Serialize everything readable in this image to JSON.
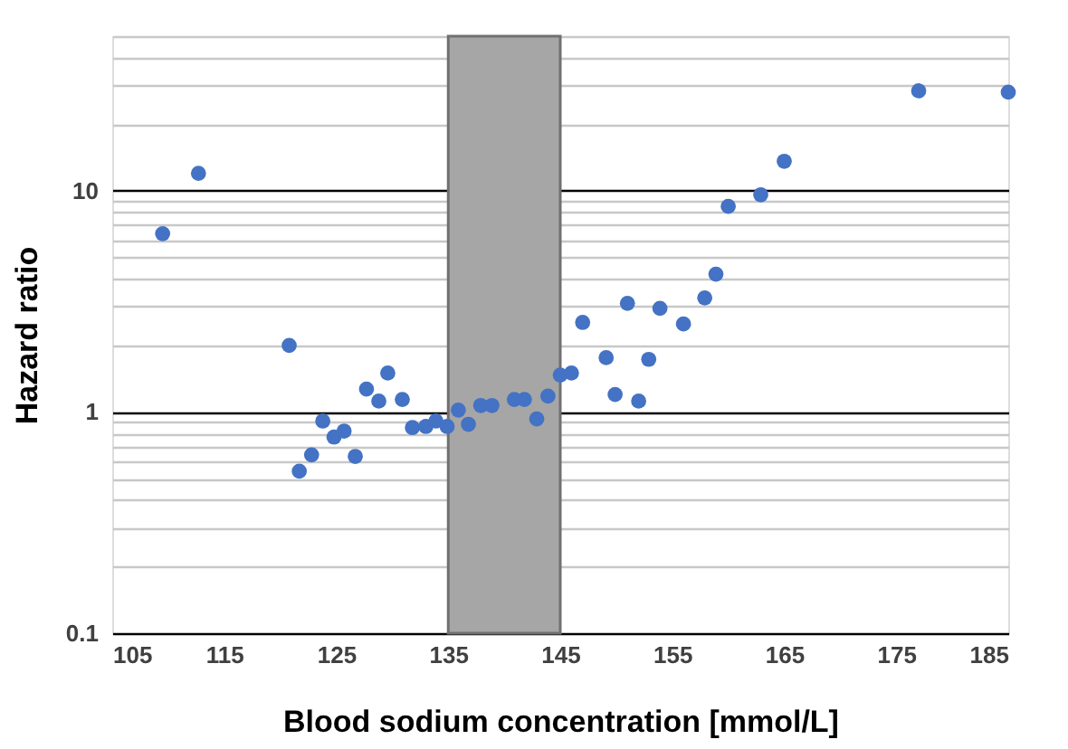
{
  "chart_data": {
    "type": "scatter",
    "xlabel": "Blood sodium concentration [mmol/L]",
    "ylabel": "Hazard ratio",
    "x": [
      109.5,
      112.7,
      120.8,
      121.7,
      122.8,
      123.8,
      124.8,
      125.7,
      126.7,
      127.7,
      128.8,
      129.6,
      130.9,
      131.8,
      133.0,
      133.9,
      134.9,
      135.9,
      136.8,
      137.9,
      138.9,
      140.9,
      141.8,
      142.9,
      143.9,
      145.0,
      146.0,
      147.0,
      149.1,
      149.9,
      151.0,
      152.0,
      152.9,
      153.9,
      156.0,
      157.9,
      158.9,
      160.0,
      162.9,
      165.0,
      177.0,
      185.0
    ],
    "series": [
      {
        "color": "#4472c4",
        "values": [
          6.4,
          12,
          2.0,
          0.54,
          0.64,
          0.91,
          0.77,
          0.82,
          0.63,
          1.27,
          1.12,
          1.5,
          1.14,
          0.85,
          0.86,
          0.91,
          0.86,
          1.02,
          0.88,
          1.07,
          1.07,
          1.14,
          1.14,
          0.93,
          1.18,
          1.47,
          1.5,
          2.54,
          1.76,
          1.2,
          3.1,
          1.12,
          1.73,
          2.94,
          2.5,
          3.28,
          4.2,
          8.5,
          9.6,
          13.6,
          28.3,
          27.9
        ]
      }
    ],
    "xlim": [
      105,
      185
    ],
    "xticks": [
      105,
      115,
      125,
      135,
      145,
      155,
      165,
      175,
      185
    ],
    "ylim": [
      0.1,
      50
    ],
    "log": "y",
    "yticks": [
      0.1,
      {
        "value": 0.2,
        "label": null
      },
      {
        "value": 0.3,
        "label": null
      },
      {
        "value": 0.4,
        "label": null
      },
      {
        "value": 0.5,
        "label": null
      },
      {
        "value": 0.6,
        "label": null
      },
      {
        "value": 0.7,
        "label": null
      },
      {
        "value": 0.8,
        "label": null
      },
      {
        "value": 0.9,
        "label": null
      },
      1,
      {
        "value": 2,
        "label": null
      },
      {
        "value": 3,
        "label": null
      },
      {
        "value": 4,
        "label": null
      },
      {
        "value": 5,
        "label": null
      },
      {
        "value": 6,
        "label": null
      },
      {
        "value": 7,
        "label": null
      },
      {
        "value": 8,
        "label": null
      },
      {
        "value": 9,
        "label": null
      },
      10,
      {
        "value": 20,
        "label": null
      },
      {
        "value": 30,
        "label": null
      },
      {
        "value": 40,
        "label": null
      },
      {
        "value": 50,
        "label": null
      }
    ],
    "grid": "y",
    "marker": "circle",
    "bands": [
      {
        "axis": "x",
        "from": 135,
        "to": 145,
        "color": "#a6a6a6"
      }
    ]
  }
}
